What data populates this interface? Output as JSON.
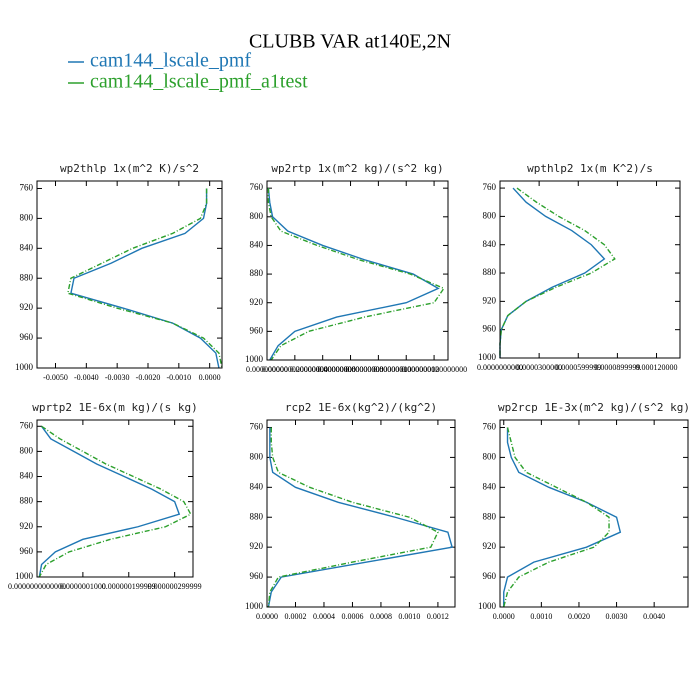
{
  "title": "CLUBB VAR at140E,2N",
  "legend": [
    {
      "name": "cam144_lscale_pmf",
      "color": "#1f77b4"
    },
    {
      "name": "cam144_lscale_pmf_a1test",
      "color": "#2ca02c"
    }
  ],
  "chart_data": [
    {
      "type": "line",
      "title": "wp2thlp  1x(m^2 K)/s^2",
      "y": [
        760,
        780,
        800,
        820,
        840,
        860,
        880,
        900,
        920,
        940,
        960,
        980,
        1000
      ],
      "ylim": [
        1000,
        750
      ],
      "yticks": [
        760,
        800,
        840,
        880,
        920,
        960,
        1000
      ],
      "xlim": [
        -0.0056,
        0.0004
      ],
      "xticks": [
        {
          "value": -0.005,
          "label": "-0.0050"
        },
        {
          "value": -0.004,
          "label": "-0.0040"
        },
        {
          "value": -0.003,
          "label": "-0.0030"
        },
        {
          "value": -0.002,
          "label": "-0.0020"
        },
        {
          "value": -0.001,
          "label": "-0.0010"
        },
        {
          "value": 0,
          "label": "0.0000"
        }
      ],
      "series": [
        {
          "values": [
            -0.0001,
            -0.0001,
            -0.0002,
            -0.0008,
            -0.0022,
            -0.0032,
            -0.0044,
            -0.0045,
            -0.0028,
            -0.0012,
            -0.0003,
            0.0002,
            0.0003
          ]
        },
        {
          "values": [
            -0.0001,
            -0.0001,
            -0.0003,
            -0.0012,
            -0.0025,
            -0.0035,
            -0.0045,
            -0.0046,
            -0.003,
            -0.0012,
            -0.0002,
            0.0003,
            0.0004
          ]
        }
      ]
    },
    {
      "type": "line",
      "title": "wp2rtp  1x(m^2 kg)/(s^2 kg)",
      "y": [
        760,
        780,
        800,
        820,
        840,
        860,
        880,
        900,
        920,
        940,
        960,
        980,
        1000
      ],
      "ylim": [
        1000,
        750
      ],
      "yticks": [
        760,
        800,
        840,
        880,
        920,
        960,
        1000
      ],
      "xlim": [
        0,
        1.3e-07
      ],
      "xticks": [
        {
          "value": 0,
          "label": "0.000000000"
        },
        {
          "value": 2e-08,
          "label": "0.000000020000000"
        },
        {
          "value": 4e-08,
          "label": "0.000000040000000"
        },
        {
          "value": 6e-08,
          "label": "0.000000060000000"
        },
        {
          "value": 8e-08,
          "label": "0.000000080000000"
        },
        {
          "value": 1e-07,
          "label": "0.000000100000000"
        },
        {
          "value": 1.2e-07,
          "label": "0.000000120000000"
        }
      ],
      "series": [
        {
          "values": [
            1e-09,
            2e-09,
            4e-09,
            1.5e-08,
            4e-08,
            7e-08,
            1.05e-07,
            1.23e-07,
            1e-07,
            5e-08,
            2e-08,
            8e-09,
            2e-09
          ]
        },
        {
          "values": [
            1e-09,
            1e-09,
            3e-09,
            1e-08,
            3.6e-08,
            6.6e-08,
            1.03e-07,
            1.27e-07,
            1.2e-07,
            7e-08,
            3e-08,
            1e-08,
            3e-09
          ]
        }
      ]
    },
    {
      "type": "line",
      "title": "wpthlp2  1x(m K^2)/s",
      "y": [
        760,
        780,
        800,
        820,
        840,
        860,
        880,
        900,
        920,
        940,
        960,
        980,
        1000
      ],
      "ylim": [
        1000,
        750
      ],
      "yticks": [
        760,
        800,
        840,
        880,
        920,
        960,
        1000
      ],
      "xlim": [
        0,
        0.000138
      ],
      "xticks": [
        {
          "value": 0,
          "label": "0.0000000000"
        },
        {
          "value": 3e-05,
          "label": "0.0000300000"
        },
        {
          "value": 6e-05,
          "label": "0.0000599999"
        },
        {
          "value": 9e-05,
          "label": "0.0000899999"
        },
        {
          "value": 0.00012,
          "label": "0.000120000"
        }
      ],
      "series": [
        {
          "values": [
            1e-05,
            2e-05,
            3.5e-05,
            5.5e-05,
            7e-05,
            8e-05,
            6.5e-05,
            4e-05,
            2e-05,
            6e-06,
            1e-06,
            0,
            0
          ]
        },
        {
          "values": [
            1.3e-05,
            2.8e-05,
            4.5e-05,
            6.5e-05,
            8e-05,
            8.8e-05,
            7e-05,
            4.3e-05,
            2e-05,
            6e-06,
            1e-06,
            0,
            0
          ]
        }
      ]
    },
    {
      "type": "line",
      "title": "wprtp2  1E-6x(m kg)/(s kg)",
      "y": [
        760,
        780,
        800,
        820,
        840,
        860,
        880,
        900,
        920,
        940,
        960,
        980,
        1000
      ],
      "ylim": [
        1000,
        750
      ],
      "yticks": [
        760,
        800,
        840,
        880,
        920,
        960,
        1000
      ],
      "xlim": [
        0,
        3.4e-07
      ],
      "xticks": [
        {
          "value": 0,
          "label": "0.0000000000000"
        },
        {
          "value": 1e-07,
          "label": "0.0000001000"
        },
        {
          "value": 2e-07,
          "label": "0.000000199999"
        },
        {
          "value": 3e-07,
          "label": "0.000000299999"
        }
      ],
      "series": [
        {
          "values": [
            1e-08,
            3e-08,
            8e-08,
            1.3e-07,
            1.9e-07,
            2.5e-07,
            3e-07,
            3.1e-07,
            2.2e-07,
            1e-07,
            4e-08,
            1e-08,
            5e-09
          ]
        },
        {
          "values": [
            1e-08,
            5e-08,
            1e-07,
            1.5e-07,
            2.1e-07,
            2.7e-07,
            3.2e-07,
            3.35e-07,
            2.8e-07,
            1.6e-07,
            7e-08,
            2e-08,
            5e-09
          ]
        }
      ]
    },
    {
      "type": "line",
      "title": "rcp2  1E-6x(kg^2)/(kg^2)",
      "y": [
        760,
        780,
        800,
        820,
        840,
        860,
        880,
        900,
        920,
        940,
        960,
        980,
        1000
      ],
      "ylim": [
        1000,
        750
      ],
      "yticks": [
        760,
        800,
        840,
        880,
        920,
        960,
        1000
      ],
      "xlim": [
        0,
        0.00132
      ],
      "xticks": [
        {
          "value": 0,
          "label": "0.0000"
        },
        {
          "value": 0.0002,
          "label": "0.0002"
        },
        {
          "value": 0.0004,
          "label": "0.0004"
        },
        {
          "value": 0.0006,
          "label": "0.0006"
        },
        {
          "value": 0.0008,
          "label": "0.0008"
        },
        {
          "value": 0.001,
          "label": "0.0010"
        },
        {
          "value": 0.0012,
          "label": "0.0012"
        }
      ],
      "series": [
        {
          "values": [
            2e-05,
            2e-05,
            2e-05,
            4e-05,
            0.0002,
            0.0005,
            0.0009,
            0.00127,
            0.0013,
            0.0007,
            0.0001,
            3e-05,
            1e-05
          ]
        },
        {
          "values": [
            3e-05,
            3e-05,
            4e-05,
            8e-05,
            0.0003,
            0.0006,
            0.001,
            0.0012,
            0.00115,
            0.0006,
            8e-05,
            2e-05,
            1e-05
          ]
        }
      ]
    },
    {
      "type": "line",
      "title": "wp2rcp  1E-3x(m^2 kg)/(s^2 kg)",
      "y": [
        760,
        780,
        800,
        820,
        840,
        860,
        880,
        900,
        920,
        940,
        960,
        980,
        1000
      ],
      "ylim": [
        1000,
        750
      ],
      "yticks": [
        760,
        800,
        840,
        880,
        920,
        960,
        1000
      ],
      "xlim": [
        -0.0001,
        0.0049
      ],
      "xticks": [
        {
          "value": 0,
          "label": "0.0000"
        },
        {
          "value": 0.001,
          "label": "0.0010"
        },
        {
          "value": 0.002,
          "label": "0.0020"
        },
        {
          "value": 0.003,
          "label": "0.0030"
        },
        {
          "value": 0.004,
          "label": "0.0040"
        }
      ],
      "series": [
        {
          "values": [
            0.0001,
            0.0001,
            0.0002,
            0.0004,
            0.0012,
            0.0022,
            0.003,
            0.0031,
            0.0022,
            0.0008,
            0.0001,
            0,
            0
          ]
        },
        {
          "values": [
            0.0001,
            0.0002,
            0.0003,
            0.0006,
            0.0014,
            0.0022,
            0.0028,
            0.0028,
            0.0024,
            0.0012,
            0.0004,
            0.0001,
            0
          ]
        }
      ]
    }
  ]
}
